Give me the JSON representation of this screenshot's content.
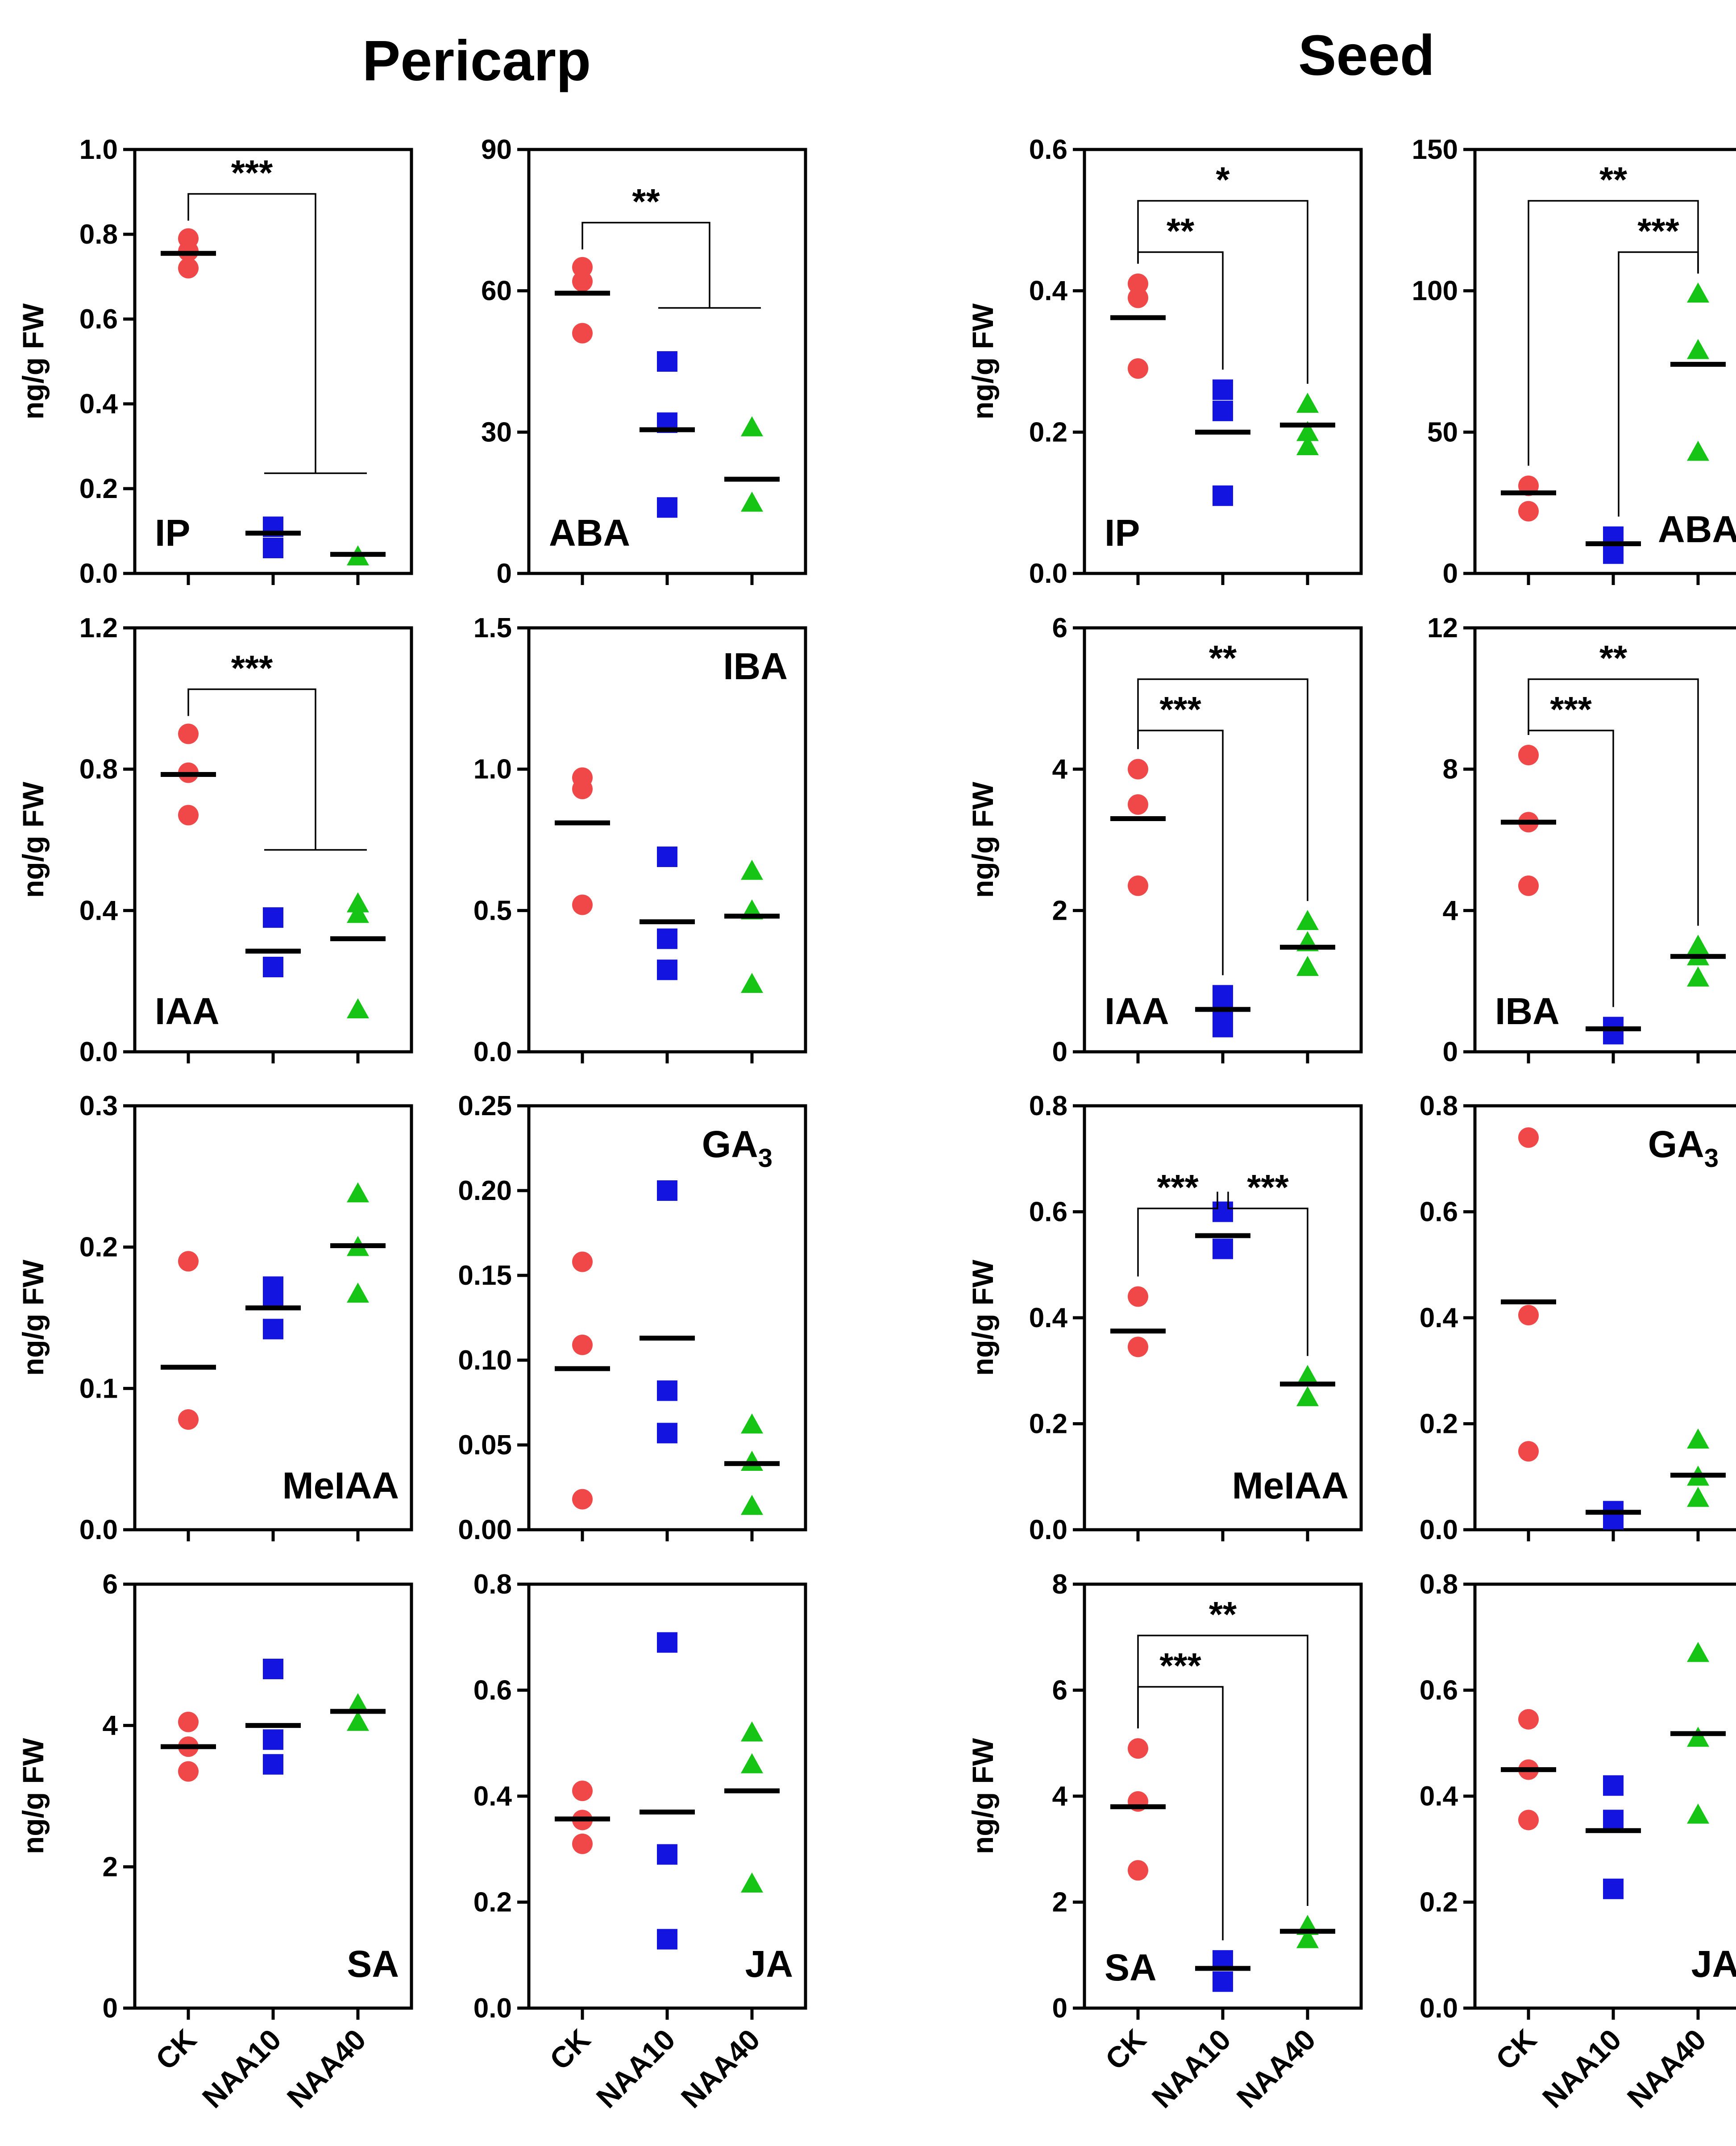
{
  "section_titles": [
    "Pericarp",
    "Seed"
  ],
  "colors": {
    "CK": "#F04848",
    "NAA10": "#1414E0",
    "NAA40": "#16C416",
    "median": "#000000",
    "axis": "#000000"
  },
  "chart_data": [
    {
      "type": "scatter",
      "panel": "Pericarp-IP",
      "hormone": "IP",
      "label_pos": "bottom-left",
      "ylabel": "ng/g FW",
      "categories": [
        "CK",
        "NAA10",
        "NAA40"
      ],
      "ylim": [
        0,
        1.0
      ],
      "yticks": [
        "0.0",
        "0.2",
        "0.4",
        "0.6",
        "0.8",
        "1.0"
      ],
      "series": [
        {
          "name": "CK",
          "marker": "circle",
          "values": [
            0.79,
            0.72,
            0.76
          ],
          "median": 0.755
        },
        {
          "name": "NAA10",
          "marker": "square",
          "values": [
            0.11,
            0.06
          ],
          "median": 0.095
        },
        {
          "name": "NAA40",
          "marker": "triangle",
          "values": [
            0.04
          ],
          "median": 0.045
        }
      ],
      "significance": [
        {
          "label": "***",
          "type": "group",
          "from": 0,
          "to": [
            1,
            2
          ]
        }
      ]
    },
    {
      "type": "scatter",
      "panel": "Pericarp-ABA",
      "hormone": "ABA",
      "label_pos": "bottom-left",
      "ylabel": "",
      "categories": [
        "CK",
        "NAA10",
        "NAA40"
      ],
      "ylim": [
        0,
        90
      ],
      "yticks": [
        "0",
        "30",
        "60",
        "90"
      ],
      "series": [
        {
          "name": "CK",
          "marker": "circle",
          "values": [
            65,
            62,
            51
          ],
          "median": 59.5
        },
        {
          "name": "NAA10",
          "marker": "square",
          "values": [
            45,
            32,
            14
          ],
          "median": 30.5
        },
        {
          "name": "NAA40",
          "marker": "triangle",
          "values": [
            31,
            15
          ],
          "median": 20
        }
      ],
      "significance": [
        {
          "label": "**",
          "type": "group",
          "from": 0,
          "to": [
            1,
            2
          ]
        }
      ]
    },
    {
      "type": "scatter",
      "panel": "Seed-IP",
      "hormone": "IP",
      "label_pos": "bottom-left",
      "ylabel": "ng/g FW",
      "categories": [
        "CK",
        "NAA10",
        "NAA40"
      ],
      "ylim": [
        0,
        0.6
      ],
      "yticks": [
        "0.0",
        "0.2",
        "0.4",
        "0.6"
      ],
      "series": [
        {
          "name": "CK",
          "marker": "circle",
          "values": [
            0.41,
            0.39,
            0.29
          ],
          "median": 0.362
        },
        {
          "name": "NAA10",
          "marker": "square",
          "values": [
            0.26,
            0.23,
            0.11
          ],
          "median": 0.2
        },
        {
          "name": "NAA40",
          "marker": "triangle",
          "values": [
            0.24,
            0.2,
            0.18
          ],
          "median": 0.21
        }
      ],
      "significance": [
        {
          "label": "**",
          "type": "pair",
          "from": 0,
          "to": 1,
          "level": 1
        },
        {
          "label": "*",
          "type": "pair",
          "from": 0,
          "to": 2,
          "level": 2
        }
      ]
    },
    {
      "type": "scatter",
      "panel": "Seed-ABA",
      "hormone": "ABA",
      "label_pos": "bottom-right",
      "ylabel": "",
      "categories": [
        "CK",
        "NAA10",
        "NAA40"
      ],
      "ylim": [
        0,
        150
      ],
      "yticks": [
        "0",
        "50",
        "100",
        "150"
      ],
      "series": [
        {
          "name": "CK",
          "marker": "circle",
          "values": [
            31,
            22
          ],
          "median": 28.5
        },
        {
          "name": "NAA10",
          "marker": "square",
          "values": [
            13,
            7
          ],
          "median": 10.5
        },
        {
          "name": "NAA40",
          "marker": "triangle",
          "values": [
            99,
            79,
            43
          ],
          "median": 74
        }
      ],
      "significance": [
        {
          "label": "***",
          "type": "pair",
          "from": 1,
          "to": 2,
          "level": 1
        },
        {
          "label": "**",
          "type": "pair",
          "from": 0,
          "to": 2,
          "level": 2
        }
      ]
    },
    {
      "type": "scatter",
      "panel": "Pericarp-IAA",
      "hormone": "IAA",
      "label_pos": "bottom-left",
      "ylabel": "ng/g FW",
      "categories": [
        "CK",
        "NAA10",
        "NAA40"
      ],
      "ylim": [
        0,
        1.2
      ],
      "yticks": [
        "0.0",
        "0.4",
        "0.8",
        "1.2"
      ],
      "series": [
        {
          "name": "CK",
          "marker": "circle",
          "values": [
            0.9,
            0.79,
            0.67
          ],
          "median": 0.785
        },
        {
          "name": "NAA10",
          "marker": "square",
          "values": [
            0.38,
            0.24
          ],
          "median": 0.285
        },
        {
          "name": "NAA40",
          "marker": "triangle",
          "values": [
            0.42,
            0.39,
            0.12
          ],
          "median": 0.32
        }
      ],
      "significance": [
        {
          "label": "***",
          "type": "group",
          "from": 0,
          "to": [
            1,
            2
          ]
        }
      ]
    },
    {
      "type": "scatter",
      "panel": "Pericarp-IBA",
      "hormone": "IBA",
      "label_pos": "top-right",
      "ylabel": "",
      "categories": [
        "CK",
        "NAA10",
        "NAA40"
      ],
      "ylim": [
        0,
        1.5
      ],
      "yticks": [
        "0.0",
        "0.5",
        "1.0",
        "1.5"
      ],
      "series": [
        {
          "name": "CK",
          "marker": "circle",
          "values": [
            0.97,
            0.93,
            0.52
          ],
          "median": 0.81
        },
        {
          "name": "NAA10",
          "marker": "square",
          "values": [
            0.69,
            0.4,
            0.29
          ],
          "median": 0.46
        },
        {
          "name": "NAA40",
          "marker": "triangle",
          "values": [
            0.64,
            0.5,
            0.24
          ],
          "median": 0.48
        }
      ],
      "significance": []
    },
    {
      "type": "scatter",
      "panel": "Seed-IAA",
      "hormone": "IAA",
      "label_pos": "bottom-left",
      "ylabel": "ng/g FW",
      "categories": [
        "CK",
        "NAA10",
        "NAA40"
      ],
      "ylim": [
        0,
        6
      ],
      "yticks": [
        "0",
        "2",
        "4",
        "6"
      ],
      "series": [
        {
          "name": "CK",
          "marker": "circle",
          "values": [
            4.0,
            3.5,
            2.35
          ],
          "median": 3.3
        },
        {
          "name": "NAA10",
          "marker": "square",
          "values": [
            0.8,
            0.6,
            0.35
          ],
          "median": 0.6
        },
        {
          "name": "NAA40",
          "marker": "triangle",
          "values": [
            1.85,
            1.55,
            1.2
          ],
          "median": 1.48
        }
      ],
      "significance": [
        {
          "label": "***",
          "type": "pair",
          "from": 0,
          "to": 1,
          "level": 1
        },
        {
          "label": "**",
          "type": "pair",
          "from": 0,
          "to": 2,
          "level": 2
        }
      ]
    },
    {
      "type": "scatter",
      "panel": "Seed-IBA",
      "hormone": "IBA",
      "label_pos": "bottom-left",
      "ylabel": "",
      "categories": [
        "CK",
        "NAA10",
        "NAA40"
      ],
      "ylim": [
        0,
        12
      ],
      "yticks": [
        "0",
        "4",
        "8",
        "12"
      ],
      "series": [
        {
          "name": "CK",
          "marker": "circle",
          "values": [
            8.4,
            6.5,
            4.7
          ],
          "median": 6.5
        },
        {
          "name": "NAA10",
          "marker": "square",
          "values": [
            0.7,
            0.5
          ],
          "median": 0.65
        },
        {
          "name": "NAA40",
          "marker": "triangle",
          "values": [
            3.0,
            2.7,
            2.1
          ],
          "median": 2.7
        }
      ],
      "significance": [
        {
          "label": "***",
          "type": "pair",
          "from": 0,
          "to": 1,
          "level": 1
        },
        {
          "label": "**",
          "type": "pair",
          "from": 0,
          "to": 2,
          "level": 2
        }
      ]
    },
    {
      "type": "scatter",
      "panel": "Pericarp-MeIAA",
      "hormone": "MeIAA",
      "label_pos": "bottom-right",
      "ylabel": "ng/g FW",
      "categories": [
        "CK",
        "NAA10",
        "NAA40"
      ],
      "ylim": [
        0,
        0.3
      ],
      "yticks": [
        "0.0",
        "0.1",
        "0.2",
        "0.3"
      ],
      "series": [
        {
          "name": "CK",
          "marker": "circle",
          "values": [
            0.19,
            0.078
          ],
          "median": 0.115
        },
        {
          "name": "NAA10",
          "marker": "square",
          "values": [
            0.172,
            0.164,
            0.142
          ],
          "median": 0.157
        },
        {
          "name": "NAA40",
          "marker": "triangle",
          "values": [
            0.238,
            0.2,
            0.167
          ],
          "median": 0.201
        }
      ],
      "significance": []
    },
    {
      "type": "scatter",
      "panel": "Pericarp-GA3",
      "hormone": "GA",
      "hormone_sub": "3",
      "label_pos": "top-right",
      "ylabel": "",
      "categories": [
        "CK",
        "NAA10",
        "NAA40"
      ],
      "ylim": [
        0,
        0.25
      ],
      "yticks": [
        "0.00",
        "0.05",
        "0.10",
        "0.15",
        "0.20",
        "0.25"
      ],
      "series": [
        {
          "name": "CK",
          "marker": "circle",
          "values": [
            0.158,
            0.109,
            0.018
          ],
          "median": 0.095
        },
        {
          "name": "NAA10",
          "marker": "square",
          "values": [
            0.2,
            0.082,
            0.057
          ],
          "median": 0.113
        },
        {
          "name": "NAA40",
          "marker": "triangle",
          "values": [
            0.062,
            0.04,
            0.014
          ],
          "median": 0.039
        }
      ],
      "significance": []
    },
    {
      "type": "scatter",
      "panel": "Seed-MeIAA",
      "hormone": "MeIAA",
      "label_pos": "bottom-right",
      "ylabel": "ng/g FW",
      "categories": [
        "CK",
        "NAA10",
        "NAA40"
      ],
      "ylim": [
        0,
        0.8
      ],
      "yticks": [
        "0.0",
        "0.2",
        "0.4",
        "0.6",
        "0.8"
      ],
      "series": [
        {
          "name": "CK",
          "marker": "circle",
          "values": [
            0.44,
            0.345
          ],
          "median": 0.375
        },
        {
          "name": "NAA10",
          "marker": "square",
          "values": [
            0.6,
            0.53
          ],
          "median": 0.555
        },
        {
          "name": "NAA40",
          "marker": "triangle",
          "values": [
            0.29,
            0.25
          ],
          "median": 0.275
        }
      ],
      "significance": [
        {
          "label": "***",
          "type": "pair",
          "from": 0,
          "to": 1,
          "level": 1
        },
        {
          "label": "***",
          "type": "pair",
          "from": 1,
          "to": 2,
          "level": 1
        }
      ]
    },
    {
      "type": "scatter",
      "panel": "Seed-GA3",
      "hormone": "GA",
      "hormone_sub": "3",
      "label_pos": "top-right",
      "ylabel": "",
      "categories": [
        "CK",
        "NAA10",
        "NAA40"
      ],
      "ylim": [
        0,
        0.8
      ],
      "yticks": [
        "0.0",
        "0.2",
        "0.4",
        "0.6",
        "0.8"
      ],
      "series": [
        {
          "name": "CK",
          "marker": "circle",
          "values": [
            0.74,
            0.405,
            0.148
          ],
          "median": 0.43
        },
        {
          "name": "NAA10",
          "marker": "square",
          "values": [
            0.035,
            0.02
          ],
          "median": 0.033
        },
        {
          "name": "NAA40",
          "marker": "triangle",
          "values": [
            0.17,
            0.1,
            0.06
          ],
          "median": 0.103
        }
      ],
      "significance": []
    },
    {
      "type": "scatter",
      "panel": "Pericarp-SA",
      "hormone": "SA",
      "label_pos": "bottom-right",
      "ylabel": "ng/g FW",
      "categories": [
        "CK",
        "NAA10",
        "NAA40"
      ],
      "ylim": [
        0,
        6
      ],
      "yticks": [
        "0",
        "2",
        "4",
        "6"
      ],
      "series": [
        {
          "name": "CK",
          "marker": "circle",
          "values": [
            4.05,
            3.7,
            3.35
          ],
          "median": 3.7
        },
        {
          "name": "NAA10",
          "marker": "square",
          "values": [
            4.8,
            3.8,
            3.45
          ],
          "median": 4.0
        },
        {
          "name": "NAA40",
          "marker": "triangle",
          "values": [
            4.3,
            4.05
          ],
          "median": 4.2
        }
      ],
      "significance": []
    },
    {
      "type": "scatter",
      "panel": "Pericarp-JA",
      "hormone": "JA",
      "label_pos": "bottom-right",
      "ylabel": "",
      "categories": [
        "CK",
        "NAA10",
        "NAA40"
      ],
      "ylim": [
        0,
        0.8
      ],
      "yticks": [
        "0.0",
        "0.2",
        "0.4",
        "0.6",
        "0.8"
      ],
      "series": [
        {
          "name": "CK",
          "marker": "circle",
          "values": [
            0.41,
            0.355,
            0.31
          ],
          "median": 0.357
        },
        {
          "name": "NAA10",
          "marker": "square",
          "values": [
            0.69,
            0.29,
            0.13
          ],
          "median": 0.37
        },
        {
          "name": "NAA40",
          "marker": "triangle",
          "values": [
            0.52,
            0.46,
            0.235
          ],
          "median": 0.41
        }
      ],
      "significance": []
    },
    {
      "type": "scatter",
      "panel": "Seed-SA",
      "hormone": "SA",
      "label_pos": "bottom-left",
      "ylabel": "ng/g FW",
      "categories": [
        "CK",
        "NAA10",
        "NAA40"
      ],
      "ylim": [
        0,
        8
      ],
      "yticks": [
        "0",
        "2",
        "4",
        "6",
        "8"
      ],
      "series": [
        {
          "name": "CK",
          "marker": "circle",
          "values": [
            4.9,
            3.9,
            2.6
          ],
          "median": 3.8
        },
        {
          "name": "NAA10",
          "marker": "square",
          "values": [
            0.9,
            0.5
          ],
          "median": 0.75
        },
        {
          "name": "NAA40",
          "marker": "triangle",
          "values": [
            1.55,
            1.3
          ],
          "median": 1.45
        }
      ],
      "significance": [
        {
          "label": "***",
          "type": "pair",
          "from": 0,
          "to": 1,
          "level": 1
        },
        {
          "label": "**",
          "type": "pair",
          "from": 0,
          "to": 2,
          "level": 2
        }
      ]
    },
    {
      "type": "scatter",
      "panel": "Seed-JA",
      "hormone": "JA",
      "label_pos": "bottom-right",
      "ylabel": "",
      "categories": [
        "CK",
        "NAA10",
        "NAA40"
      ],
      "ylim": [
        0,
        0.8
      ],
      "yticks": [
        "0.0",
        "0.2",
        "0.4",
        "0.6",
        "0.8"
      ],
      "series": [
        {
          "name": "CK",
          "marker": "circle",
          "values": [
            0.545,
            0.45,
            0.355
          ],
          "median": 0.45
        },
        {
          "name": "NAA10",
          "marker": "square",
          "values": [
            0.42,
            0.355,
            0.225
          ],
          "median": 0.335
        },
        {
          "name": "NAA40",
          "marker": "triangle",
          "values": [
            0.67,
            0.51,
            0.365
          ],
          "median": 0.518
        }
      ],
      "significance": []
    }
  ]
}
